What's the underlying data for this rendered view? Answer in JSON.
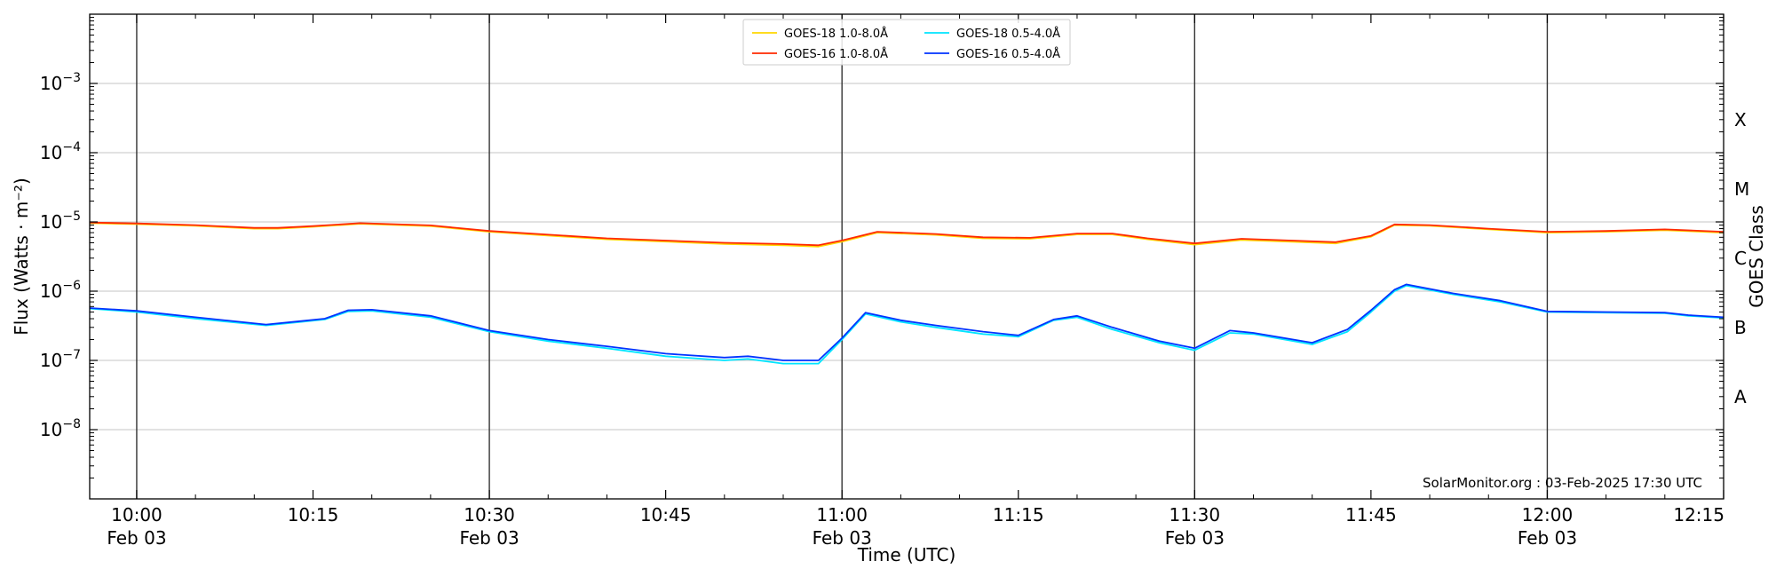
{
  "chart_data": {
    "type": "line",
    "ylabel": "Flux (Watts · m⁻²)",
    "xlabel": "Time (UTC)",
    "right_label": "GOES Class",
    "y_scale": "log",
    "ylim": [
      1e-09,
      0.01
    ],
    "y_ticks": [
      {
        "value": 1e-08,
        "base": "10",
        "exp": "−8"
      },
      {
        "value": 1e-07,
        "base": "10",
        "exp": "−7"
      },
      {
        "value": 1e-06,
        "base": "10",
        "exp": "−6"
      },
      {
        "value": 1e-05,
        "base": "10",
        "exp": "−5"
      },
      {
        "value": 0.0001,
        "base": "10",
        "exp": "−4"
      },
      {
        "value": 0.001,
        "base": "10",
        "exp": "−3"
      }
    ],
    "xlim": [
      "2025-02-03 09:56",
      "2025-02-03 12:15"
    ],
    "x_ticks": [
      {
        "time": "10:00",
        "label": "10:00",
        "sublabel": "Feb 03"
      },
      {
        "time": "10:15",
        "label": "10:15",
        "sublabel": ""
      },
      {
        "time": "10:30",
        "label": "10:30",
        "sublabel": "Feb 03"
      },
      {
        "time": "10:45",
        "label": "10:45",
        "sublabel": ""
      },
      {
        "time": "11:00",
        "label": "11:00",
        "sublabel": "Feb 03"
      },
      {
        "time": "11:15",
        "label": "11:15",
        "sublabel": ""
      },
      {
        "time": "11:30",
        "label": "11:30",
        "sublabel": "Feb 03"
      },
      {
        "time": "11:45",
        "label": "11:45",
        "sublabel": ""
      },
      {
        "time": "12:00",
        "label": "12:00",
        "sublabel": "Feb 03"
      },
      {
        "time": "12:15",
        "label": "12:15",
        "sublabel": ""
      }
    ],
    "day_marker_times": [
      "10:00",
      "10:30",
      "11:00",
      "11:30",
      "12:00"
    ],
    "goes_classes": [
      {
        "label": "A",
        "value": 3e-08
      },
      {
        "label": "B",
        "value": 3e-07
      },
      {
        "label": "C",
        "value": 3e-06
      },
      {
        "label": "M",
        "value": 3e-05
      },
      {
        "label": "X",
        "value": 0.0003
      }
    ],
    "grid": true,
    "legend_position": "top-center",
    "watermark": "SolarMonitor.org : 03-Feb-2025 17:30 UTC",
    "series": [
      {
        "name": "GOES-18 1.0-8.0Å",
        "color": "#ffd700",
        "points": [
          [
            "09:56",
            9.6e-06
          ],
          [
            "10:00",
            9.3e-06
          ],
          [
            "10:05",
            8.8e-06
          ],
          [
            "10:10",
            8e-06
          ],
          [
            "10:12",
            8e-06
          ],
          [
            "10:15",
            8.5e-06
          ],
          [
            "10:19",
            9.4e-06
          ],
          [
            "10:25",
            8.7e-06
          ],
          [
            "10:30",
            7.2e-06
          ],
          [
            "10:40",
            5.6e-06
          ],
          [
            "10:50",
            4.8e-06
          ],
          [
            "10:55",
            4.6e-06
          ],
          [
            "10:58",
            4.4e-06
          ],
          [
            "11:00",
            5.2e-06
          ],
          [
            "11:03",
            7e-06
          ],
          [
            "11:08",
            6.5e-06
          ],
          [
            "11:12",
            5.8e-06
          ],
          [
            "11:16",
            5.7e-06
          ],
          [
            "11:20",
            6.6e-06
          ],
          [
            "11:23",
            6.6e-06
          ],
          [
            "11:26",
            5.6e-06
          ],
          [
            "11:30",
            4.7e-06
          ],
          [
            "11:34",
            5.5e-06
          ],
          [
            "11:38",
            5.2e-06
          ],
          [
            "11:42",
            4.9e-06
          ],
          [
            "11:45",
            6.1e-06
          ],
          [
            "11:47",
            9e-06
          ],
          [
            "11:50",
            8.8e-06
          ],
          [
            "11:55",
            7.8e-06
          ],
          [
            "12:00",
            7e-06
          ],
          [
            "12:05",
            7.2e-06
          ],
          [
            "12:10",
            7.6e-06
          ],
          [
            "12:15",
            7e-06
          ]
        ]
      },
      {
        "name": "GOES-16 1.0-8.0Å",
        "color": "#ff2a00",
        "points": [
          [
            "09:56",
            9.8e-06
          ],
          [
            "10:00",
            9.5e-06
          ],
          [
            "10:05",
            9e-06
          ],
          [
            "10:10",
            8.2e-06
          ],
          [
            "10:12",
            8.2e-06
          ],
          [
            "10:15",
            8.7e-06
          ],
          [
            "10:19",
            9.6e-06
          ],
          [
            "10:25",
            8.9e-06
          ],
          [
            "10:30",
            7.4e-06
          ],
          [
            "10:40",
            5.8e-06
          ],
          [
            "10:50",
            5e-06
          ],
          [
            "10:55",
            4.8e-06
          ],
          [
            "10:58",
            4.6e-06
          ],
          [
            "11:00",
            5.4e-06
          ],
          [
            "11:03",
            7.2e-06
          ],
          [
            "11:08",
            6.7e-06
          ],
          [
            "11:12",
            6e-06
          ],
          [
            "11:16",
            5.9e-06
          ],
          [
            "11:20",
            6.8e-06
          ],
          [
            "11:23",
            6.8e-06
          ],
          [
            "11:26",
            5.8e-06
          ],
          [
            "11:30",
            4.9e-06
          ],
          [
            "11:34",
            5.7e-06
          ],
          [
            "11:38",
            5.4e-06
          ],
          [
            "11:42",
            5.1e-06
          ],
          [
            "11:45",
            6.3e-06
          ],
          [
            "11:47",
            9.2e-06
          ],
          [
            "11:50",
            9e-06
          ],
          [
            "11:55",
            8e-06
          ],
          [
            "12:00",
            7.2e-06
          ],
          [
            "12:05",
            7.4e-06
          ],
          [
            "12:10",
            7.8e-06
          ],
          [
            "12:15",
            7.2e-06
          ]
        ]
      },
      {
        "name": "GOES-18 0.5-4.0Å",
        "color": "#00e5ff",
        "points": [
          [
            "09:56",
            5.6e-07
          ],
          [
            "10:00",
            5e-07
          ],
          [
            "10:05",
            4e-07
          ],
          [
            "10:11",
            3.2e-07
          ],
          [
            "10:14",
            3.6e-07
          ],
          [
            "10:16",
            3.9e-07
          ],
          [
            "10:18",
            5.1e-07
          ],
          [
            "10:20",
            5.2e-07
          ],
          [
            "10:25",
            4.2e-07
          ],
          [
            "10:30",
            2.6e-07
          ],
          [
            "10:35",
            1.9e-07
          ],
          [
            "10:40",
            1.5e-07
          ],
          [
            "10:45",
            1.15e-07
          ],
          [
            "10:50",
            1e-07
          ],
          [
            "10:52",
            1.05e-07
          ],
          [
            "10:55",
            9e-08
          ],
          [
            "10:58",
            9e-08
          ],
          [
            "11:00",
            2e-07
          ],
          [
            "11:02",
            4.7e-07
          ],
          [
            "11:05",
            3.6e-07
          ],
          [
            "11:08",
            3e-07
          ],
          [
            "11:12",
            2.4e-07
          ],
          [
            "11:15",
            2.2e-07
          ],
          [
            "11:18",
            3.8e-07
          ],
          [
            "11:20",
            4.2e-07
          ],
          [
            "11:23",
            2.8e-07
          ],
          [
            "11:27",
            1.8e-07
          ],
          [
            "11:30",
            1.4e-07
          ],
          [
            "11:33",
            2.5e-07
          ],
          [
            "11:35",
            2.4e-07
          ],
          [
            "11:40",
            1.7e-07
          ],
          [
            "11:43",
            2.6e-07
          ],
          [
            "11:45",
            5e-07
          ],
          [
            "11:47",
            1e-06
          ],
          [
            "11:48",
            1.2e-06
          ],
          [
            "11:52",
            9e-07
          ],
          [
            "11:56",
            7e-07
          ],
          [
            "12:00",
            5e-07
          ],
          [
            "12:05",
            4.9e-07
          ],
          [
            "12:10",
            4.8e-07
          ],
          [
            "12:12",
            4.4e-07
          ],
          [
            "12:15",
            4.1e-07
          ]
        ]
      },
      {
        "name": "GOES-16 0.5-4.0Å",
        "color": "#0033ff",
        "points": [
          [
            "09:56",
            5.7e-07
          ],
          [
            "10:00",
            5.2e-07
          ],
          [
            "10:05",
            4.2e-07
          ],
          [
            "10:11",
            3.3e-07
          ],
          [
            "10:14",
            3.7e-07
          ],
          [
            "10:16",
            4e-07
          ],
          [
            "10:18",
            5.3e-07
          ],
          [
            "10:20",
            5.4e-07
          ],
          [
            "10:25",
            4.4e-07
          ],
          [
            "10:30",
            2.7e-07
          ],
          [
            "10:35",
            2e-07
          ],
          [
            "10:40",
            1.6e-07
          ],
          [
            "10:45",
            1.25e-07
          ],
          [
            "10:50",
            1.1e-07
          ],
          [
            "10:52",
            1.15e-07
          ],
          [
            "10:55",
            1e-07
          ],
          [
            "10:58",
            1e-07
          ],
          [
            "11:00",
            2.1e-07
          ],
          [
            "11:02",
            4.9e-07
          ],
          [
            "11:05",
            3.8e-07
          ],
          [
            "11:08",
            3.2e-07
          ],
          [
            "11:12",
            2.6e-07
          ],
          [
            "11:15",
            2.3e-07
          ],
          [
            "11:18",
            3.9e-07
          ],
          [
            "11:20",
            4.4e-07
          ],
          [
            "11:23",
            3e-07
          ],
          [
            "11:27",
            1.9e-07
          ],
          [
            "11:30",
            1.5e-07
          ],
          [
            "11:33",
            2.7e-07
          ],
          [
            "11:35",
            2.5e-07
          ],
          [
            "11:40",
            1.8e-07
          ],
          [
            "11:43",
            2.8e-07
          ],
          [
            "11:45",
            5.3e-07
          ],
          [
            "11:47",
            1.05e-06
          ],
          [
            "11:48",
            1.25e-06
          ],
          [
            "11:52",
            9.3e-07
          ],
          [
            "11:56",
            7.3e-07
          ],
          [
            "12:00",
            5.1e-07
          ],
          [
            "12:05",
            5e-07
          ],
          [
            "12:10",
            4.9e-07
          ],
          [
            "12:12",
            4.5e-07
          ],
          [
            "12:15",
            4.2e-07
          ]
        ]
      }
    ]
  }
}
